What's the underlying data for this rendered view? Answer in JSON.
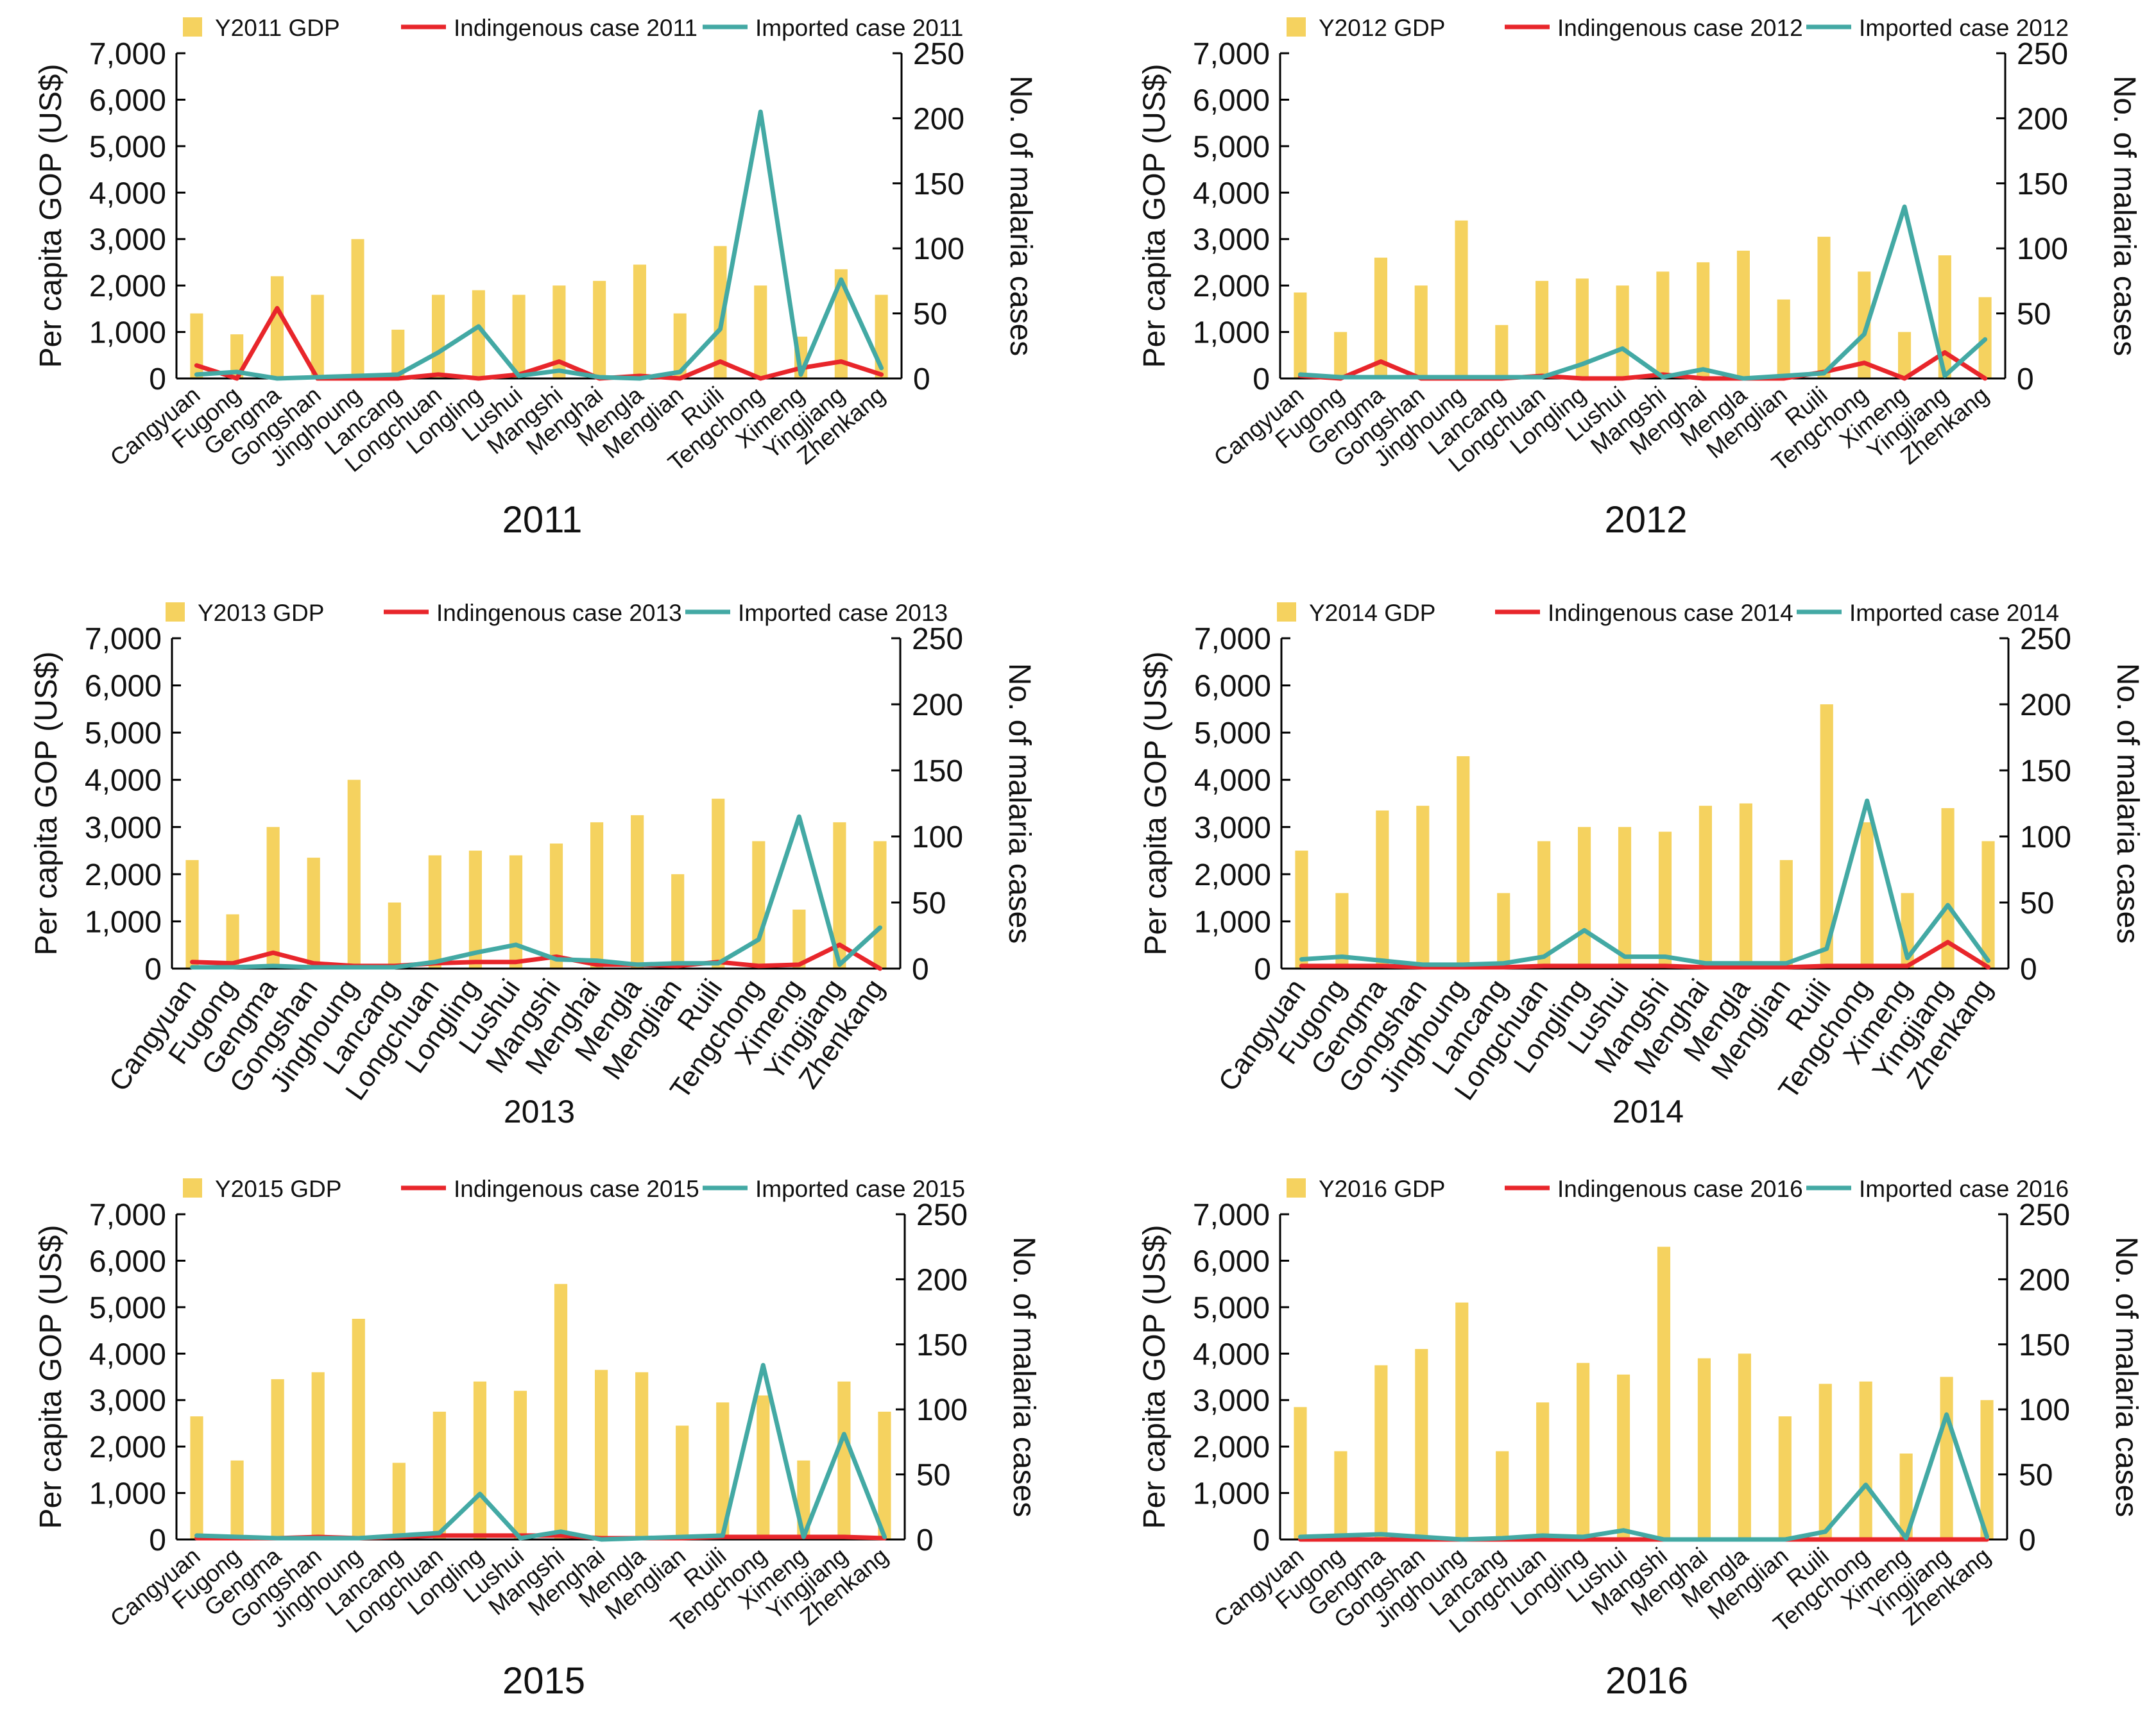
{
  "colors": {
    "gdp": "#F5D25F",
    "indigenous": "#E8262B",
    "imported": "#43A9A4",
    "axis": "#000000"
  },
  "chart_data": [
    {
      "type": "bar+line",
      "title": "2011",
      "ylabel": "Per capita GOP (US$)",
      "y2label": "No. of malaria cases",
      "ylim": [
        0,
        7000
      ],
      "y2lim": [
        0,
        250
      ],
      "yticks": [
        "0",
        "1,000",
        "2,000",
        "3,000",
        "4,000",
        "5,000",
        "6,000",
        "7,000"
      ],
      "y2ticks": [
        "0",
        "50",
        "100",
        "150",
        "200",
        "250"
      ],
      "categories": [
        "Cangyuan",
        "Fugong",
        "Gengma",
        "Gongshan",
        "Jinghoung",
        "Lancang",
        "Longchuan",
        "Longling",
        "Lushui",
        "Mangshi",
        "Menghai",
        "Mengla",
        "Menglian",
        "Ruili",
        "Tengchong",
        "Ximeng",
        "Yingjiang",
        "Zhenkang"
      ],
      "legend": [
        "Y2011 GDP",
        "Indingenous case 2011",
        "Imported case 2011"
      ],
      "series": [
        {
          "name": "Y2011 GDP",
          "axis": "left",
          "values": [
            1400,
            950,
            2200,
            1800,
            3000,
            1050,
            1800,
            1900,
            1800,
            2000,
            2100,
            2450,
            1400,
            2850,
            2000,
            900,
            2350,
            1800
          ]
        },
        {
          "name": "Indingenous case 2011",
          "axis": "right",
          "values": [
            10,
            0,
            54,
            0,
            0,
            0,
            3,
            0,
            3,
            13,
            0,
            2,
            0,
            13,
            0,
            8,
            13,
            3
          ]
        },
        {
          "name": "Imported case 2011",
          "axis": "right",
          "values": [
            3,
            5,
            0,
            1,
            2,
            3,
            20,
            40,
            2,
            6,
            1,
            0,
            5,
            38,
            205,
            3,
            76,
            8
          ]
        }
      ]
    },
    {
      "type": "bar+line",
      "title": "2012",
      "ylabel": "Per capita GOP (US$)",
      "y2label": "No. of malaria cases",
      "ylim": [
        0,
        7000
      ],
      "y2lim": [
        0,
        250
      ],
      "yticks": [
        "0",
        "1,000",
        "2,000",
        "3,000",
        "4,000",
        "5,000",
        "6,000",
        "7,000"
      ],
      "y2ticks": [
        "0",
        "50",
        "100",
        "150",
        "200",
        "250"
      ],
      "categories": [
        "Cangyuan",
        "Fugong",
        "Gengma",
        "Gongshan",
        "Jinghoung",
        "Lancang",
        "Longchuan",
        "Longling",
        "Lushui",
        "Mangshi",
        "Menghai",
        "Mengla",
        "Menglian",
        "Ruili",
        "Tengchong",
        "Ximeng",
        "Yingjiang",
        "Zhenkang"
      ],
      "legend": [
        "Y2012 GDP",
        "Indingenous case 2012",
        "Imported case 2012"
      ],
      "series": [
        {
          "name": "Y2012 GDP",
          "axis": "left",
          "values": [
            1850,
            1000,
            2600,
            2000,
            3400,
            1150,
            2100,
            2150,
            2000,
            2300,
            2500,
            2750,
            1700,
            3050,
            2300,
            1000,
            2650,
            1750
          ]
        },
        {
          "name": "Indingenous case 2012",
          "axis": "right",
          "values": [
            2,
            0,
            13,
            0,
            0,
            0,
            2,
            0,
            0,
            3,
            0,
            0,
            0,
            5,
            12,
            0,
            20,
            0
          ]
        },
        {
          "name": "Imported case 2012",
          "axis": "right",
          "values": [
            3,
            1,
            1,
            1,
            1,
            1,
            1,
            11,
            23,
            1,
            7,
            0,
            2,
            4,
            34,
            132,
            2,
            30
          ]
        }
      ]
    },
    {
      "type": "bar+line",
      "title": "2013",
      "ylabel": "Per capita GOP (US$)",
      "y2label": "No. of malaria cases",
      "ylim": [
        0,
        7000
      ],
      "y2lim": [
        0,
        250
      ],
      "yticks": [
        "0",
        "1,000",
        "2,000",
        "3,000",
        "4,000",
        "5,000",
        "6,000",
        "7,000"
      ],
      "y2ticks": [
        "0",
        "50",
        "100",
        "150",
        "200",
        "250"
      ],
      "categories": [
        "Cangyuan",
        "Fugong",
        "Gengma",
        "Gongshan",
        "Jinghoung",
        "Lancang",
        "Longchuan",
        "Longling",
        "Lushui",
        "Mangshi",
        "Menghai",
        "Mengla",
        "Menglian",
        "Ruili",
        "Tengchong",
        "Ximeng",
        "Yingjiang",
        "Zhenkang"
      ],
      "legend": [
        "Y2013 GDP",
        "Indingenous case 2013",
        "Imported case 2013"
      ],
      "series": [
        {
          "name": "Y2013 GDP",
          "axis": "left",
          "values": [
            2300,
            1150,
            3000,
            2350,
            4000,
            1400,
            2400,
            2500,
            2400,
            2650,
            3100,
            3250,
            2000,
            3600,
            2700,
            1250,
            3100,
            2700
          ]
        },
        {
          "name": "Indingenous case 2013",
          "axis": "right",
          "values": [
            5,
            4,
            12,
            4,
            2,
            2,
            4,
            5,
            5,
            9,
            3,
            3,
            2,
            5,
            2,
            3,
            18,
            0
          ]
        },
        {
          "name": "Imported case 2013",
          "axis": "right",
          "values": [
            1,
            1,
            2,
            1,
            1,
            1,
            5,
            12,
            18,
            7,
            6,
            3,
            4,
            4,
            22,
            115,
            3,
            31
          ]
        }
      ]
    },
    {
      "type": "bar+line",
      "title": "2014",
      "ylabel": "Per capita GOP (US$)",
      "y2label": "No. of malaria cases",
      "ylim": [
        0,
        7000
      ],
      "y2lim": [
        0,
        250
      ],
      "yticks": [
        "0",
        "1,000",
        "2,000",
        "3,000",
        "4,000",
        "5,000",
        "6,000",
        "7,000"
      ],
      "y2ticks": [
        "0",
        "50",
        "100",
        "150",
        "200",
        "250"
      ],
      "categories": [
        "Cangyuan",
        "Fugong",
        "Gengma",
        "Gongshan",
        "Jinghoung",
        "Lancang",
        "Longchuan",
        "Longling",
        "Lushui",
        "Mangshi",
        "Menghai",
        "Mengla",
        "Menglian",
        "Ruili",
        "Tengchong",
        "Ximeng",
        "Yingjiang",
        "Zhenkang"
      ],
      "legend": [
        "Y2014 GDP",
        "Indingenous case 2014",
        "Imported case 2014"
      ],
      "series": [
        {
          "name": "Y2014 GDP",
          "axis": "left",
          "values": [
            2500,
            1600,
            3350,
            3450,
            4500,
            1600,
            2700,
            3000,
            3000,
            2900,
            3450,
            3500,
            2300,
            5600,
            3100,
            1600,
            3400,
            2700
          ]
        },
        {
          "name": "Indingenous case 2014",
          "axis": "right",
          "values": [
            2,
            2,
            2,
            1,
            1,
            1,
            2,
            2,
            2,
            2,
            1,
            1,
            1,
            2,
            2,
            2,
            20,
            1
          ]
        },
        {
          "name": "Imported case 2014",
          "axis": "right",
          "values": [
            7,
            9,
            6,
            3,
            3,
            4,
            9,
            29,
            9,
            9,
            4,
            4,
            4,
            15,
            127,
            8,
            48,
            6
          ]
        }
      ]
    },
    {
      "type": "bar+line",
      "title": "2015",
      "ylabel": "Per capita GOP (US$)",
      "y2label": "No. of malaria cases",
      "ylim": [
        0,
        7000
      ],
      "y2lim": [
        0,
        250
      ],
      "yticks": [
        "0",
        "1,000",
        "2,000",
        "3,000",
        "4,000",
        "5,000",
        "6,000",
        "7,000"
      ],
      "y2ticks": [
        "0",
        "50",
        "100",
        "150",
        "200",
        "250"
      ],
      "categories": [
        "Cangyuan",
        "Fugong",
        "Gengma",
        "Gongshan",
        "Jinghoung",
        "Lancang",
        "Longchuan",
        "Longling",
        "Lushui",
        "Mangshi",
        "Menghai",
        "Mengla",
        "Menglian",
        "Ruili",
        "Tengchong",
        "Ximeng",
        "Yingjiang",
        "Zhenkang"
      ],
      "legend": [
        "Y2015 GDP",
        "Indingenous case 2015",
        "Imported case 2015"
      ],
      "series": [
        {
          "name": "Y2015 GDP",
          "axis": "left",
          "values": [
            2650,
            1700,
            3450,
            3600,
            4750,
            1650,
            2750,
            3400,
            3200,
            5500,
            3650,
            3600,
            2450,
            2950,
            3100,
            1700,
            3400,
            2750
          ]
        },
        {
          "name": "Indingenous case 2015",
          "axis": "right",
          "values": [
            1,
            1,
            1,
            2,
            1,
            2,
            3,
            3,
            3,
            3,
            1,
            1,
            1,
            2,
            2,
            2,
            2,
            1
          ]
        },
        {
          "name": "Imported case 2015",
          "axis": "right",
          "values": [
            3,
            2,
            1,
            1,
            1,
            3,
            5,
            35,
            1,
            6,
            0,
            1,
            2,
            3,
            134,
            2,
            81,
            2
          ]
        }
      ]
    },
    {
      "type": "bar+line",
      "title": "2016",
      "ylabel": "Per capita GOP (US$)",
      "y2label": "No. of malaria cases",
      "ylim": [
        0,
        7000
      ],
      "y2lim": [
        0,
        250
      ],
      "yticks": [
        "0",
        "1,000",
        "2,000",
        "3,000",
        "4,000",
        "5,000",
        "6,000",
        "7,000"
      ],
      "y2ticks": [
        "0",
        "50",
        "100",
        "150",
        "200",
        "250"
      ],
      "categories": [
        "Cangyuan",
        "Fugong",
        "Gengma",
        "Gongshan",
        "Jinghoung",
        "Lancang",
        "Longchuan",
        "Longling",
        "Lushui",
        "Mangshi",
        "Menghai",
        "Mengla",
        "Menglian",
        "Ruili",
        "Tengchong",
        "Ximeng",
        "Yingjiang",
        "Zhenkang"
      ],
      "legend": [
        "Y2016 GDP",
        "Indingenous case 2016",
        "Imported case 2016"
      ],
      "series": [
        {
          "name": "Y2016 GDP",
          "axis": "left",
          "values": [
            2850,
            1900,
            3750,
            4100,
            5100,
            1900,
            2950,
            3800,
            3550,
            6300,
            3900,
            4000,
            2650,
            3350,
            3400,
            1850,
            3500,
            3000
          ]
        },
        {
          "name": "Indingenous case 2016",
          "axis": "right",
          "values": [
            0,
            0,
            0,
            0,
            0,
            0,
            0,
            0,
            0,
            0,
            0,
            0,
            0,
            0,
            0,
            0,
            0,
            0
          ]
        },
        {
          "name": "Imported case 2016",
          "axis": "right",
          "values": [
            2,
            3,
            4,
            2,
            0,
            1,
            3,
            2,
            7,
            0,
            0,
            0,
            0,
            6,
            42,
            1,
            96,
            2
          ]
        }
      ]
    }
  ]
}
